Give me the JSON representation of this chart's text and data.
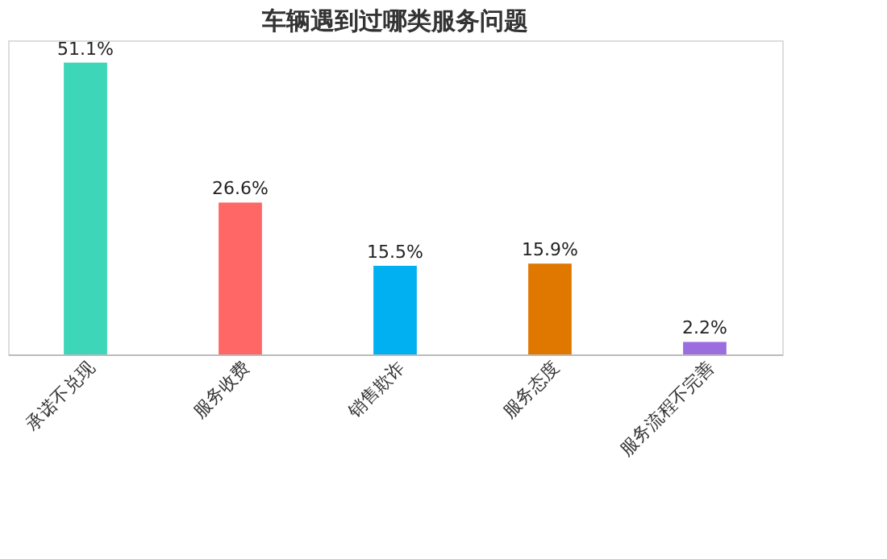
{
  "chart_data": {
    "type": "bar",
    "title": "车辆遇到过哪类服务问题",
    "categories": [
      "承诺不兑现",
      "服务收费",
      "销售欺诈",
      "服务态度",
      "服务流程不完善"
    ],
    "values": [
      51.1,
      26.6,
      15.5,
      15.9,
      2.2
    ],
    "colors": [
      "#3dd6b8",
      "#ff6666",
      "#00b0f0",
      "#e07800",
      "#9b6ee0"
    ],
    "value_labels": [
      "51.1%",
      "26.6%",
      "15.5%",
      "15.9%",
      "2.2%"
    ],
    "grid": false,
    "legend": false
  }
}
